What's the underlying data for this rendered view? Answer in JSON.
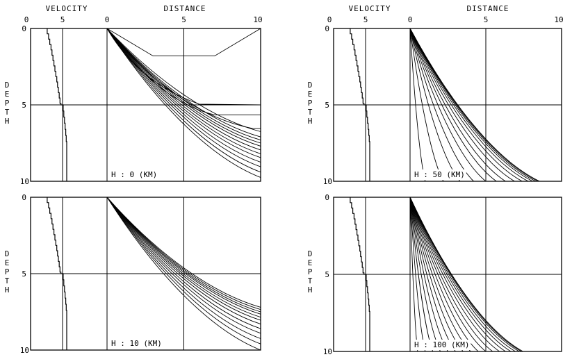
{
  "figure": {
    "headers": {
      "velocity": "VELOCITY",
      "distance": "DISTANCE"
    },
    "depth_letters": [
      "D",
      "E",
      "P",
      "T",
      "H"
    ]
  },
  "chart_data": [
    {
      "type": "line",
      "panel": "top-left",
      "annotation": "H : 0 (KM)",
      "ylabel": "DEPTH",
      "velocity_axis": {
        "label": "VELOCITY",
        "ticks": [
          "0",
          "5"
        ],
        "xlim": [
          0,
          7
        ]
      },
      "distance_axis": {
        "label": "DISTANCE",
        "ticks": [
          "0",
          "5",
          "10"
        ],
        "xlim": [
          0,
          10
        ]
      },
      "depth_axis": {
        "ticks": [
          "0",
          "5",
          "10"
        ],
        "ylim": [
          0,
          10
        ],
        "inverted": true
      },
      "velocity_profile": {
        "depth": [
          0,
          0.35,
          0.35,
          0.7,
          0.7,
          1.05,
          1.05,
          1.4,
          1.4,
          1.75,
          1.75,
          2.1,
          2.1,
          2.45,
          2.45,
          2.8,
          2.8,
          3.15,
          3.15,
          3.5,
          3.5,
          3.85,
          3.85,
          4.2,
          4.2,
          4.55,
          4.55,
          4.9,
          4.9,
          5.0,
          5.0,
          5.4,
          5.4,
          5.8,
          5.8,
          6.2,
          6.2,
          6.6,
          6.6,
          7.0,
          7.0,
          7.4,
          7.4,
          10
        ],
        "velocity": [
          2.6,
          2.6,
          2.82,
          2.82,
          3.0,
          3.0,
          3.2,
          3.2,
          3.35,
          3.35,
          3.5,
          3.5,
          3.65,
          3.65,
          3.8,
          3.8,
          3.95,
          3.95,
          4.1,
          4.1,
          4.22,
          4.22,
          4.35,
          4.35,
          4.48,
          4.48,
          4.6,
          4.6,
          4.75,
          4.75,
          5.1,
          5.1,
          5.2,
          5.2,
          5.3,
          5.3,
          5.4,
          5.4,
          5.5,
          5.5,
          5.58,
          5.58,
          5.65,
          5.65
        ]
      },
      "reference_lines": {
        "velocity": 5,
        "distance": 5,
        "depth": 5
      },
      "rays": [
        {
          "x": [
            0,
            3,
            7,
            10
          ],
          "y": [
            0,
            1.8,
            1.8,
            0
          ]
        },
        {
          "x": [
            0,
            10
          ],
          "y": [
            0,
            5.0
          ],
          "shape": "curve-then-flat"
        },
        {
          "x": [
            0,
            7,
            10
          ],
          "y": [
            0,
            5.65,
            5.65
          ]
        },
        {
          "x": [
            0,
            9.5,
            10
          ],
          "y": [
            0,
            6.55,
            6.55
          ]
        },
        {
          "x": [
            0,
            10
          ],
          "y": [
            0,
            6.75
          ]
        },
        {
          "x": [
            0,
            10
          ],
          "y": [
            0,
            7.1
          ]
        },
        {
          "x": [
            0,
            10
          ],
          "y": [
            0,
            7.3
          ]
        },
        {
          "x": [
            0,
            10
          ],
          "y": [
            0,
            7.5
          ]
        },
        {
          "x": [
            0,
            10
          ],
          "y": [
            0,
            7.7
          ]
        },
        {
          "x": [
            0,
            10
          ],
          "y": [
            0,
            7.95
          ]
        },
        {
          "x": [
            0,
            10
          ],
          "y": [
            0,
            8.2
          ]
        },
        {
          "x": [
            0,
            10
          ],
          "y": [
            0,
            8.45
          ]
        },
        {
          "x": [
            0,
            10
          ],
          "y": [
            0,
            8.75
          ]
        },
        {
          "x": [
            0,
            10
          ],
          "y": [
            0,
            9.05
          ]
        },
        {
          "x": [
            0,
            10
          ],
          "y": [
            0,
            9.4
          ]
        },
        {
          "x": [
            0,
            10
          ],
          "y": [
            0,
            9.75
          ]
        }
      ]
    },
    {
      "type": "line",
      "panel": "bottom-left",
      "annotation": "H : 10 (KM)",
      "ylabel": "DEPTH",
      "velocity_axis": {
        "ticks": [],
        "xlim": [
          0,
          7
        ]
      },
      "distance_axis": {
        "ticks": [],
        "xlim": [
          0,
          10
        ]
      },
      "depth_axis": {
        "ticks": [
          "0",
          "5",
          "10"
        ],
        "ylim": [
          0,
          10
        ],
        "inverted": true
      },
      "velocity_profile": {
        "depth": [
          0,
          0.35,
          0.35,
          0.7,
          0.7,
          1.05,
          1.05,
          1.4,
          1.4,
          1.75,
          1.75,
          2.1,
          2.1,
          2.45,
          2.45,
          2.8,
          2.8,
          3.15,
          3.15,
          3.5,
          3.5,
          3.85,
          3.85,
          4.2,
          4.2,
          4.55,
          4.55,
          4.9,
          4.9,
          5.0,
          5.0,
          5.4,
          5.4,
          5.8,
          5.8,
          6.2,
          6.2,
          6.6,
          6.6,
          7.0,
          7.0,
          7.4,
          7.4,
          10
        ],
        "velocity": [
          2.6,
          2.6,
          2.82,
          2.82,
          3.0,
          3.0,
          3.2,
          3.2,
          3.35,
          3.35,
          3.5,
          3.5,
          3.65,
          3.65,
          3.8,
          3.8,
          3.95,
          3.95,
          4.1,
          4.1,
          4.22,
          4.22,
          4.35,
          4.35,
          4.48,
          4.48,
          4.6,
          4.6,
          4.75,
          4.75,
          5.1,
          5.1,
          5.2,
          5.2,
          5.3,
          5.3,
          5.4,
          5.4,
          5.5,
          5.5,
          5.58,
          5.58,
          5.65,
          5.65
        ]
      },
      "reference_lines": {
        "velocity": 5,
        "distance": 5,
        "depth": 5
      },
      "rays": [
        {
          "x": [
            0,
            10
          ],
          "y": [
            0,
            7.2
          ]
        },
        {
          "x": [
            0,
            10
          ],
          "y": [
            0,
            7.35
          ]
        },
        {
          "x": [
            0,
            10
          ],
          "y": [
            0,
            7.5
          ]
        },
        {
          "x": [
            0,
            10
          ],
          "y": [
            0,
            7.65
          ]
        },
        {
          "x": [
            0,
            10
          ],
          "y": [
            0,
            7.85
          ]
        },
        {
          "x": [
            0,
            10
          ],
          "y": [
            0,
            8.05
          ]
        },
        {
          "x": [
            0,
            10
          ],
          "y": [
            0,
            8.3
          ]
        },
        {
          "x": [
            0,
            10
          ],
          "y": [
            0,
            8.6
          ]
        },
        {
          "x": [
            0,
            10
          ],
          "y": [
            0,
            8.9
          ]
        },
        {
          "x": [
            0,
            10
          ],
          "y": [
            0,
            9.25
          ]
        },
        {
          "x": [
            0,
            10
          ],
          "y": [
            0,
            9.6
          ]
        },
        {
          "x": [
            0,
            10
          ],
          "y": [
            0,
            10
          ]
        }
      ]
    },
    {
      "type": "line",
      "panel": "top-right",
      "annotation": "H : 50 (KM)",
      "ylabel": "DEPTH",
      "velocity_axis": {
        "label": "VELOCITY",
        "ticks": [
          "0",
          "5"
        ],
        "xlim": [
          0,
          7
        ]
      },
      "distance_axis": {
        "label": "DISTANCE",
        "ticks": [
          "0",
          "5",
          "10"
        ],
        "xlim": [
          0,
          10
        ]
      },
      "depth_axis": {
        "ticks": [
          "0",
          "5",
          "10"
        ],
        "ylim": [
          0,
          10
        ],
        "inverted": true
      },
      "velocity_profile": {
        "depth": [
          0,
          0.35,
          0.35,
          0.7,
          0.7,
          1.05,
          1.05,
          1.4,
          1.4,
          1.75,
          1.75,
          2.1,
          2.1,
          2.45,
          2.45,
          2.8,
          2.8,
          3.15,
          3.15,
          3.5,
          3.5,
          3.85,
          3.85,
          4.2,
          4.2,
          4.55,
          4.55,
          4.9,
          4.9,
          5.0,
          5.0,
          5.4,
          5.4,
          5.8,
          5.8,
          6.2,
          6.2,
          6.6,
          6.6,
          7.0,
          7.0,
          7.4,
          7.4,
          10
        ],
        "velocity": [
          2.6,
          2.6,
          2.82,
          2.82,
          3.0,
          3.0,
          3.2,
          3.2,
          3.35,
          3.35,
          3.5,
          3.5,
          3.65,
          3.65,
          3.8,
          3.8,
          3.95,
          3.95,
          4.1,
          4.1,
          4.22,
          4.22,
          4.35,
          4.35,
          4.48,
          4.48,
          4.6,
          4.6,
          4.75,
          4.75,
          5.1,
          5.1,
          5.2,
          5.2,
          5.3,
          5.3,
          5.4,
          5.4,
          5.5,
          5.5,
          5.58,
          5.58,
          5.65,
          5.65
        ]
      },
      "reference_lines": {
        "velocity": 5,
        "distance": 5,
        "depth": 5
      },
      "rays": [
        {
          "x": [
            0,
            1.0
          ],
          "y": [
            0,
            10
          ]
        },
        {
          "x": [
            0,
            2.2
          ],
          "y": [
            0,
            10
          ]
        },
        {
          "x": [
            0,
            3.3
          ],
          "y": [
            0,
            10
          ]
        },
        {
          "x": [
            0,
            4.2
          ],
          "y": [
            0,
            10
          ]
        },
        {
          "x": [
            0,
            5.0
          ],
          "y": [
            0,
            10
          ]
        },
        {
          "x": [
            0,
            5.7
          ],
          "y": [
            0,
            10
          ]
        },
        {
          "x": [
            0,
            6.3
          ],
          "y": [
            0,
            10
          ]
        },
        {
          "x": [
            0,
            6.9
          ],
          "y": [
            0,
            10
          ]
        },
        {
          "x": [
            0,
            7.4
          ],
          "y": [
            0,
            10
          ]
        },
        {
          "x": [
            0,
            7.8
          ],
          "y": [
            0,
            10
          ]
        },
        {
          "x": [
            0,
            8.1
          ],
          "y": [
            0,
            10
          ]
        },
        {
          "x": [
            0,
            8.3
          ],
          "y": [
            0,
            10
          ]
        },
        {
          "x": [
            0,
            8.45
          ],
          "y": [
            0,
            10
          ]
        },
        {
          "x": [
            0,
            8.55
          ],
          "y": [
            0,
            10
          ]
        }
      ]
    },
    {
      "type": "line",
      "panel": "bottom-right",
      "annotation": "H : 100 (KM)",
      "ylabel": "DEPTH",
      "velocity_axis": {
        "ticks": [],
        "xlim": [
          0,
          7
        ]
      },
      "distance_axis": {
        "ticks": [],
        "xlim": [
          0,
          10
        ]
      },
      "depth_axis": {
        "ticks": [
          "0",
          "5",
          "10"
        ],
        "ylim": [
          0,
          10
        ],
        "inverted": true
      },
      "velocity_profile": {
        "depth": [
          0,
          0.35,
          0.35,
          0.7,
          0.7,
          1.05,
          1.05,
          1.4,
          1.4,
          1.75,
          1.75,
          2.1,
          2.1,
          2.45,
          2.45,
          2.8,
          2.8,
          3.15,
          3.15,
          3.5,
          3.5,
          3.85,
          3.85,
          4.2,
          4.2,
          4.55,
          4.55,
          4.9,
          4.9,
          5.0,
          5.0,
          5.4,
          5.4,
          5.8,
          5.8,
          6.2,
          6.2,
          6.6,
          6.6,
          7.0,
          7.0,
          7.4,
          7.4,
          10
        ],
        "velocity": [
          2.6,
          2.6,
          2.82,
          2.82,
          3.0,
          3.0,
          3.2,
          3.2,
          3.35,
          3.35,
          3.5,
          3.5,
          3.65,
          3.65,
          3.8,
          3.8,
          3.95,
          3.95,
          4.1,
          4.1,
          4.22,
          4.22,
          4.35,
          4.35,
          4.48,
          4.48,
          4.6,
          4.6,
          4.75,
          4.75,
          5.1,
          5.1,
          5.2,
          5.2,
          5.3,
          5.3,
          5.4,
          5.4,
          5.5,
          5.5,
          5.58,
          5.58,
          5.65,
          5.65
        ]
      },
      "reference_lines": {
        "velocity": 5,
        "distance": 5,
        "depth": 5
      },
      "rays": [
        {
          "x": [
            0,
            0.5
          ],
          "y": [
            0,
            10
          ]
        },
        {
          "x": [
            0,
            1.0
          ],
          "y": [
            0,
            10
          ]
        },
        {
          "x": [
            0,
            1.5
          ],
          "y": [
            0,
            10
          ]
        },
        {
          "x": [
            0,
            2.0
          ],
          "y": [
            0,
            10
          ]
        },
        {
          "x": [
            0,
            2.5
          ],
          "y": [
            0,
            10
          ]
        },
        {
          "x": [
            0,
            3.0
          ],
          "y": [
            0,
            10
          ]
        },
        {
          "x": [
            0,
            3.5
          ],
          "y": [
            0,
            10
          ]
        },
        {
          "x": [
            0,
            4.0
          ],
          "y": [
            0,
            10
          ]
        },
        {
          "x": [
            0,
            4.5
          ],
          "y": [
            0,
            10
          ]
        },
        {
          "x": [
            0,
            5.0
          ],
          "y": [
            0,
            10
          ]
        },
        {
          "x": [
            0,
            5.45
          ],
          "y": [
            0,
            10
          ]
        },
        {
          "x": [
            0,
            5.9
          ],
          "y": [
            0,
            10
          ]
        },
        {
          "x": [
            0,
            6.3
          ],
          "y": [
            0,
            10
          ]
        },
        {
          "x": [
            0,
            6.65
          ],
          "y": [
            0,
            10
          ]
        },
        {
          "x": [
            0,
            6.95
          ],
          "y": [
            0,
            10
          ]
        },
        {
          "x": [
            0,
            7.2
          ],
          "y": [
            0,
            10
          ]
        },
        {
          "x": [
            0,
            7.35
          ],
          "y": [
            0,
            10
          ]
        },
        {
          "x": [
            0,
            7.45
          ],
          "y": [
            0,
            10
          ]
        }
      ]
    }
  ]
}
